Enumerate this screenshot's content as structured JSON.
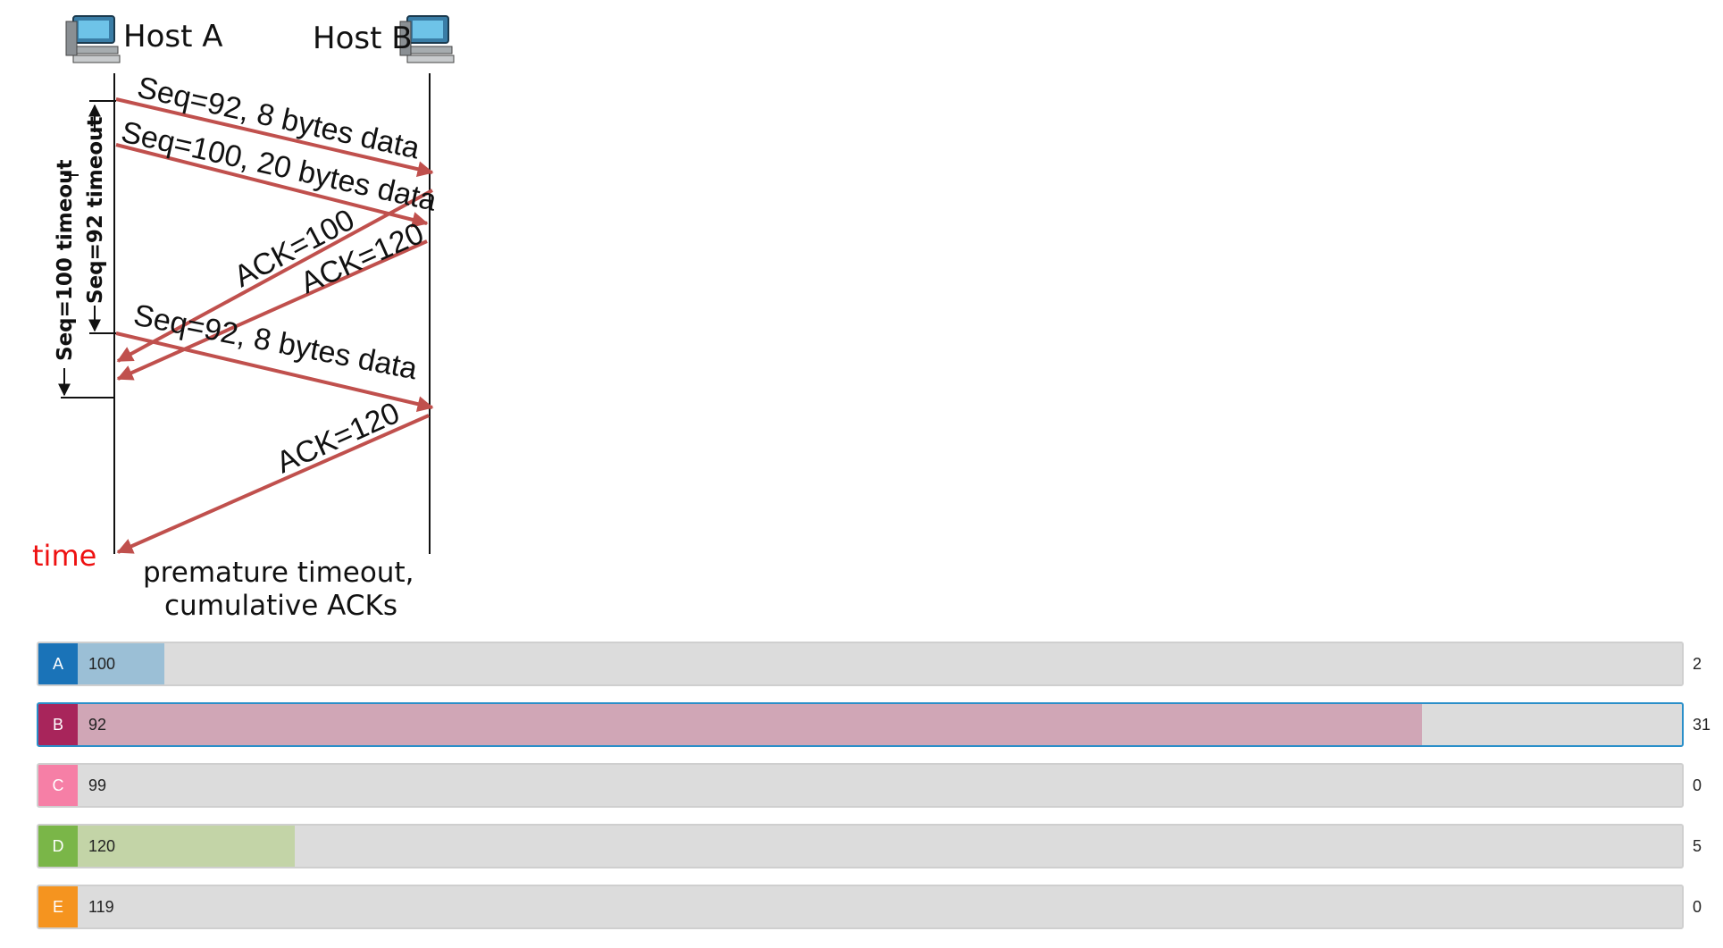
{
  "diagram": {
    "host_a": "Host A",
    "host_b": "Host B",
    "messages": {
      "seq92_first": "Seq=92, 8 bytes data",
      "seq100": "Seq=100, 20 bytes data",
      "ack100": "ACK=100",
      "ack120_first": "ACK=120",
      "seq92_retransmit": "Seq=92, 8 bytes data",
      "ack120_second": "ACK=120"
    },
    "timeouts": {
      "seq92": "Seq=92 timeout",
      "seq100": "Seq=100 timeout"
    },
    "time_label": "time",
    "caption_line1": "premature timeout,",
    "caption_line2": "cumulative ACKs",
    "icon": "computer-icon",
    "arrow_color": "#c0504d",
    "time_color": "#ee1111"
  },
  "poll": {
    "options": [
      {
        "letter": "A",
        "answer": "100",
        "count": "2",
        "fraction": 0.0541,
        "badge_color": "#1a73b8",
        "fill_color": "#9bbfd6",
        "selected": false
      },
      {
        "letter": "B",
        "answer": "92",
        "count": "31",
        "fraction": 0.8378,
        "badge_color": "#a8255b",
        "fill_color": "#d0a6b6",
        "selected": true
      },
      {
        "letter": "C",
        "answer": "99",
        "count": "0",
        "fraction": 0.0,
        "badge_color": "#f67fa6",
        "fill_color": "#f3c0d1",
        "selected": false
      },
      {
        "letter": "D",
        "answer": "120",
        "count": "5",
        "fraction": 0.1351,
        "badge_color": "#7ab648",
        "fill_color": "#c3d4a7",
        "selected": false
      },
      {
        "letter": "E",
        "answer": "119",
        "count": "0",
        "fraction": 0.0,
        "badge_color": "#f5941f",
        "fill_color": "#f6cf9c",
        "selected": false
      }
    ]
  }
}
